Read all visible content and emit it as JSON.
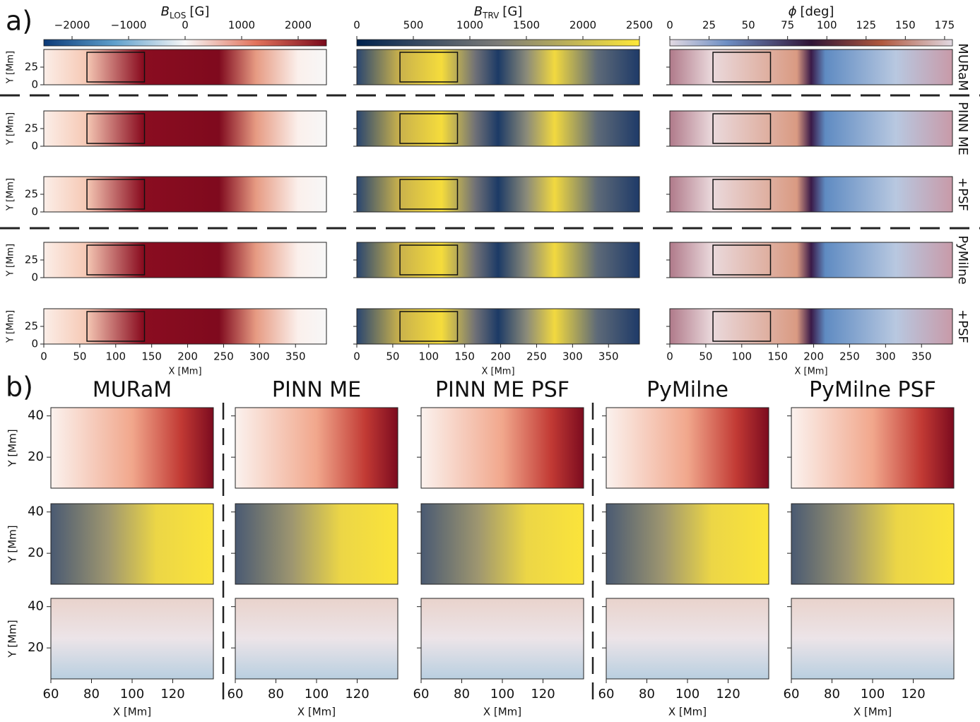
{
  "panel_a": {
    "label": "a)",
    "colorbars": [
      {
        "symbol": "B",
        "subscript": "LOS",
        "unit": "[G]",
        "lim": [
          -2500,
          2500
        ],
        "ticks": [
          {
            "value": -2000,
            "label": "−2000"
          },
          {
            "value": -1000,
            "label": "−1000"
          },
          0,
          1000,
          2000
        ]
      },
      {
        "symbol": "B",
        "subscript": "TRV",
        "unit": "[G]",
        "lim": [
          0,
          2500
        ],
        "ticks": [
          0,
          500,
          1000,
          1500,
          2000,
          2500
        ]
      },
      {
        "symbol": "ϕ",
        "unit": "[deg]",
        "lim": [
          0,
          180
        ],
        "ticks": [
          0,
          25,
          50,
          75,
          100,
          125,
          150,
          175
        ]
      }
    ],
    "row_labels": [
      "MURaM",
      "PINN ME",
      "+PSF",
      "PyMilne",
      "+PSF"
    ],
    "xlim": [
      0,
      393
    ],
    "ylim": [
      0,
      50
    ],
    "xticks": [
      0,
      50,
      100,
      150,
      200,
      250,
      300,
      350
    ],
    "yticks": [
      0,
      25
    ],
    "x_label": "X [Mm]",
    "y_label": "Y [Mm]",
    "zoom_region": {
      "x": [
        60,
        140
      ],
      "y": [
        4,
        46
      ]
    }
  },
  "panel_b": {
    "label": "b)",
    "column_titles": [
      "MURaM",
      "PINN ME",
      "PINN ME PSF",
      "PyMilne",
      "PyMilne PSF"
    ],
    "xlim": [
      60,
      140
    ],
    "ylim": [
      5,
      44
    ],
    "xticks": [
      60,
      80,
      100,
      120
    ],
    "yticks": [
      20,
      40
    ],
    "x_label": "X [Mm]",
    "y_label": "Y [Mm]"
  }
}
